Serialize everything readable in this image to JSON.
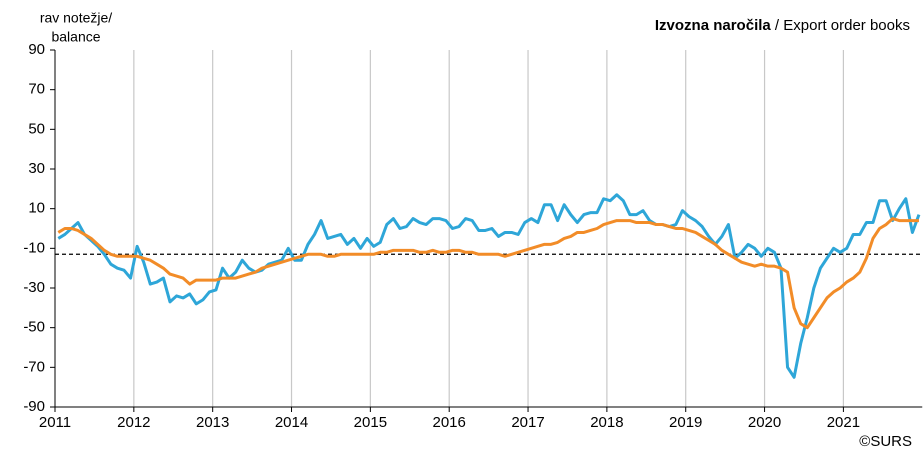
{
  "chart_data": {
    "type": "line",
    "title": "Izvozna naročila",
    "subtitle": "/ Export order books",
    "ylabel": [
      "rav notežje/",
      "balance"
    ],
    "source": "©SURS",
    "categories": [
      "2011",
      null,
      null,
      null,
      null,
      null,
      null,
      null,
      null,
      null,
      null,
      null,
      "2012",
      null,
      null,
      null,
      null,
      null,
      null,
      null,
      null,
      null,
      null,
      null,
      "2013",
      null,
      null,
      null,
      null,
      null,
      null,
      null,
      null,
      null,
      null,
      null,
      "2014",
      null,
      null,
      null,
      null,
      null,
      null,
      null,
      null,
      null,
      null,
      null,
      "2015",
      null,
      null,
      null,
      null,
      null,
      null,
      null,
      null,
      null,
      null,
      null,
      "2016",
      null,
      null,
      null,
      null,
      null,
      null,
      null,
      null,
      null,
      null,
      null,
      "2017",
      null,
      null,
      null,
      null,
      null,
      null,
      null,
      null,
      null,
      null,
      null,
      "2018",
      null,
      null,
      null,
      null,
      null,
      null,
      null,
      null,
      null,
      null,
      null,
      "2019",
      null,
      null,
      null,
      null,
      null,
      null,
      null,
      null,
      null,
      null,
      null,
      "2020",
      null,
      null,
      null,
      null,
      null,
      null,
      null,
      null,
      null,
      null,
      null,
      "2021",
      null,
      null,
      null,
      null,
      null,
      null,
      null,
      null,
      null,
      null,
      null
    ],
    "series": [
      {
        "color": "#2ea6d8",
        "values": [
          -5,
          -3,
          0,
          3,
          -3,
          -6,
          -9,
          -13,
          -18,
          -20,
          -21,
          -25,
          -9,
          -17,
          -28,
          -27,
          -25,
          -37,
          -34,
          -35,
          -33,
          -38,
          -36,
          -32,
          -31,
          -20,
          -25,
          -22,
          -16,
          -20,
          -22,
          -21,
          -18,
          -17,
          -16,
          -10,
          -16,
          -16,
          -8,
          -3,
          4,
          -5,
          -4,
          -3,
          -8,
          -5,
          -10,
          -5,
          -9,
          -7,
          2,
          5,
          0,
          1,
          5,
          3,
          2,
          5,
          5,
          4,
          0,
          1,
          5,
          4,
          -1,
          -1,
          0,
          -4,
          -2,
          -2,
          -3,
          3,
          5,
          3,
          12,
          12,
          4,
          12,
          7,
          3,
          7,
          8,
          8,
          15,
          14,
          17,
          14,
          7,
          7,
          9,
          4,
          2,
          2,
          1,
          2,
          9,
          6,
          4,
          1,
          -4,
          -8,
          -4,
          2,
          -15,
          -12,
          -8,
          -10,
          -14,
          -10,
          -12,
          -20,
          -70,
          -75,
          -58,
          -45,
          -30,
          -20,
          -15,
          -10,
          -12,
          -10,
          -3,
          -3,
          3,
          3,
          14,
          14,
          4,
          10,
          15,
          -2,
          7
        ]
      },
      {
        "color": "#f28c28",
        "values": [
          -2,
          0,
          0,
          -1,
          -3,
          -5,
          -8,
          -11,
          -13,
          -14,
          -14,
          -14,
          -14,
          -15,
          -16,
          -18,
          -20,
          -23,
          -24,
          -25,
          -28,
          -26,
          -26,
          -26,
          -26,
          -25,
          -25,
          -25,
          -24,
          -23,
          -22,
          -20,
          -19,
          -18,
          -17,
          -16,
          -15,
          -14,
          -13,
          -13,
          -13,
          -14,
          -14,
          -13,
          -13,
          -13,
          -13,
          -13,
          -13,
          -12,
          -12,
          -11,
          -11,
          -11,
          -11,
          -12,
          -12,
          -11,
          -12,
          -12,
          -11,
          -11,
          -12,
          -12,
          -13,
          -13,
          -13,
          -13,
          -14,
          -13,
          -12,
          -11,
          -10,
          -9,
          -8,
          -8,
          -7,
          -5,
          -4,
          -2,
          -2,
          -1,
          0,
          2,
          3,
          4,
          4,
          4,
          3,
          3,
          3,
          2,
          2,
          1,
          0,
          0,
          -1,
          -2,
          -4,
          -6,
          -8,
          -11,
          -13,
          -15,
          -17,
          -18,
          -19,
          -18,
          -19,
          -19,
          -20,
          -22,
          -40,
          -48,
          -50,
          -45,
          -40,
          -35,
          -32,
          -30,
          -27,
          -25,
          -22,
          -15,
          -5,
          0,
          2,
          5,
          4,
          4,
          4,
          4
        ]
      }
    ],
    "reference_value": -13,
    "ylim": [
      -90,
      90
    ],
    "yticks": [
      -90,
      -70,
      -50,
      -30,
      -10,
      10,
      30,
      50,
      70,
      90
    ],
    "grid": true
  }
}
